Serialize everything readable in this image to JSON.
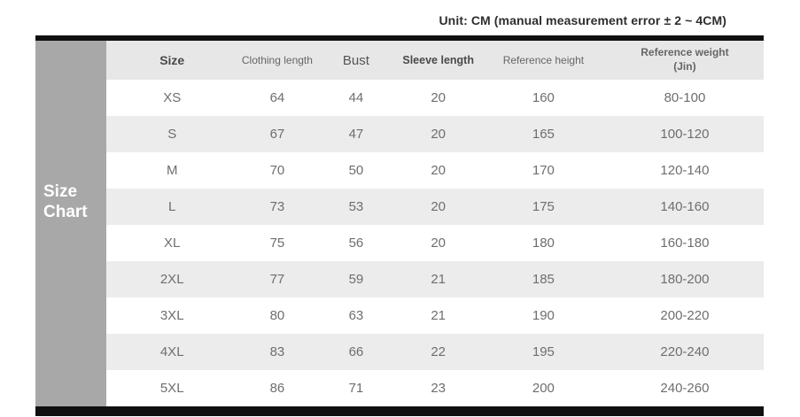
{
  "side_label": {
    "text": "Size Chart",
    "line1": "Size",
    "line2": "Chart"
  },
  "header_sixth_column": {
    "line1": "Reference weight",
    "line2": "(Jin)"
  },
  "chart_data": {
    "type": "table",
    "title": "Size Chart",
    "unit_note": "Unit: CM (manual measurement error ± 2 ~ 4CM)",
    "columns": [
      "Size",
      "Clothing length",
      "Bust",
      "Sleeve length",
      "Reference height",
      "Reference weight (Jin)"
    ],
    "rows": [
      [
        "XS",
        "64",
        "44",
        "20",
        "160",
        "80-100"
      ],
      [
        "S",
        "67",
        "47",
        "20",
        "165",
        "100-120"
      ],
      [
        "M",
        "70",
        "50",
        "20",
        "170",
        "120-140"
      ],
      [
        "L",
        "73",
        "53",
        "20",
        "175",
        "140-160"
      ],
      [
        "XL",
        "75",
        "56",
        "20",
        "180",
        "160-180"
      ],
      [
        "2XL",
        "77",
        "59",
        "21",
        "185",
        "180-200"
      ],
      [
        "3XL",
        "80",
        "63",
        "21",
        "190",
        "200-220"
      ],
      [
        "4XL",
        "83",
        "66",
        "22",
        "195",
        "220-240"
      ],
      [
        "5XL",
        "86",
        "71",
        "23",
        "200",
        "240-260"
      ]
    ],
    "layout": {
      "row_striping": true,
      "stripe_color": "#ececec",
      "header_bg": "#e7e7e7",
      "side_block_color": "#a8a8a8",
      "divider_bar_color": "#101010"
    }
  }
}
